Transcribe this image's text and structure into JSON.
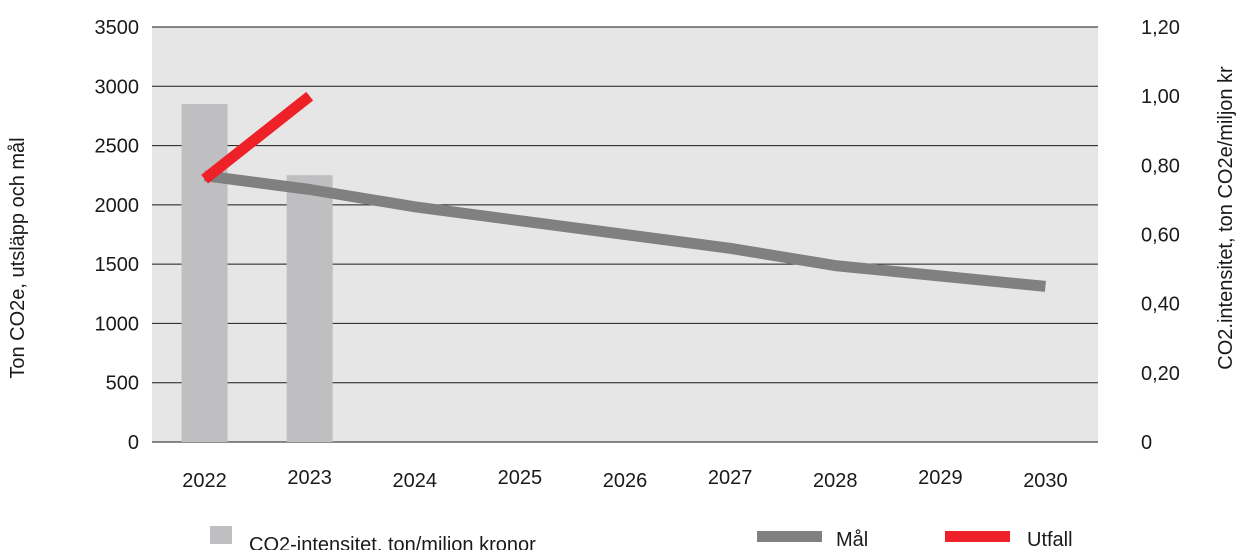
{
  "chart_data": {
    "type": "bar",
    "categories": [
      "2022",
      "2023",
      "2024",
      "2025",
      "2026",
      "2027",
      "2028",
      "2029",
      "2030"
    ],
    "bars": {
      "name": "CO2-intensitet, ton/miljon kronor",
      "axis": "left",
      "values": [
        2850,
        2250,
        null,
        null,
        null,
        null,
        null,
        null,
        null
      ],
      "color": "#bfbfc1"
    },
    "series": [
      {
        "name": "Mål",
        "axis": "right",
        "type": "line",
        "values": [
          0.77,
          0.73,
          0.68,
          0.64,
          0.6,
          0.56,
          0.51,
          0.48,
          0.45
        ],
        "color": "#808080"
      },
      {
        "name": "Utfall",
        "axis": "right",
        "type": "line",
        "values": [
          0.76,
          1.0,
          null,
          null,
          null,
          null,
          null,
          null,
          null
        ],
        "color": "#ee2028"
      }
    ],
    "ylabel": "Ton CO2e, utsläpp och mål",
    "y2label": "CO2.intensitet, ton CO2e/miljon kr",
    "ylim": [
      0,
      3500
    ],
    "yticks": [
      "0",
      "500",
      "1000",
      "1500",
      "2000",
      "2500",
      "3000",
      "3500"
    ],
    "y2lim": [
      0,
      1.2
    ],
    "y2ticks": [
      "0",
      "0,20",
      "0,40",
      "0,60",
      "0,80",
      "1,00",
      "1,20"
    ],
    "grid": true,
    "background": "#e6e6e6",
    "legend_position": "bottom"
  }
}
